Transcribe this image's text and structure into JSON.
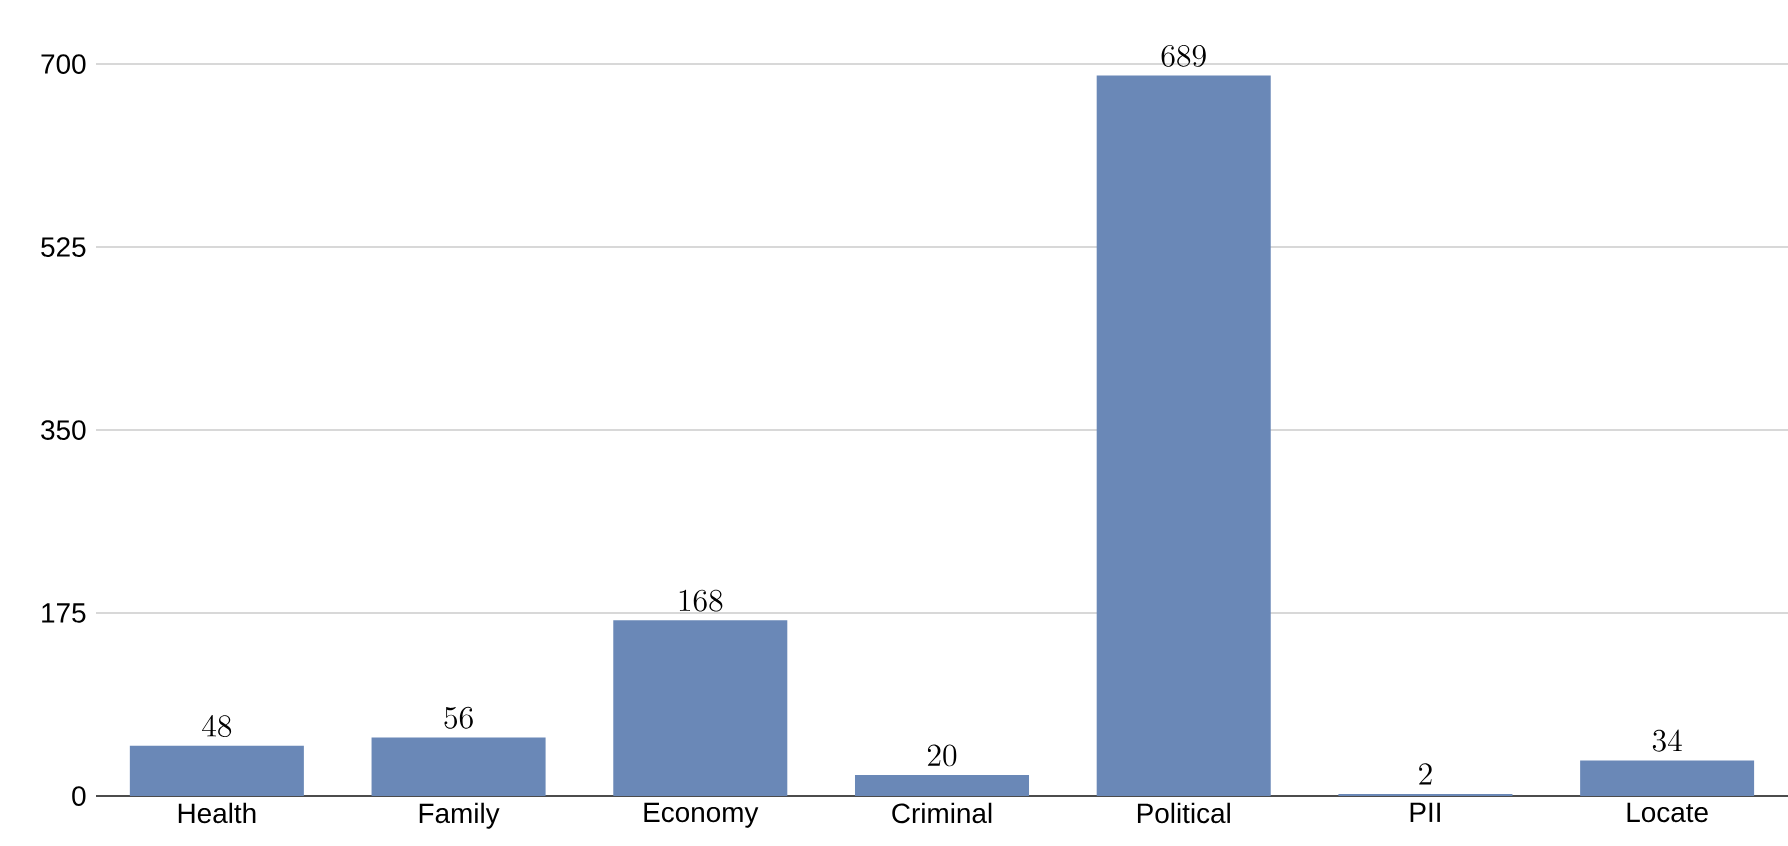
{
  "chart_data": {
    "type": "bar",
    "categories": [
      "Health",
      "Family",
      "Economy",
      "Criminal",
      "Political",
      "PII",
      "Locate"
    ],
    "values": [
      48,
      56,
      168,
      20,
      689,
      2,
      34
    ],
    "color": "#6a88b7",
    "ylim": [
      0,
      700
    ],
    "yticks": [
      0,
      175,
      350,
      525,
      700
    ],
    "grid": "y",
    "data_labels": true
  }
}
